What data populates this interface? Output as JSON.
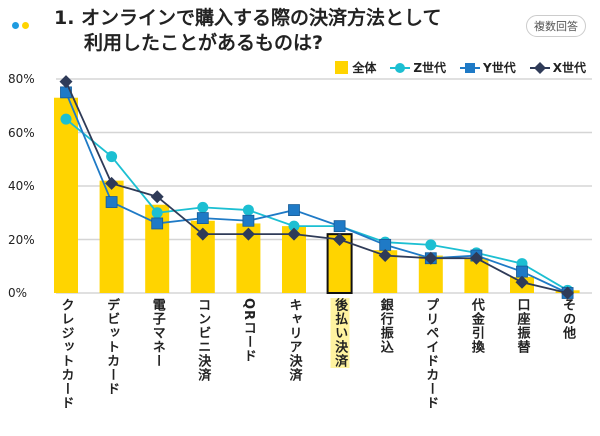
{
  "title": "1. オンラインで購入する際の決済方法として利用したことがあるものは?",
  "title_line1": "1. オンラインで購入する際の決済方法として",
  "title_line2": "利用したことがあるものは?",
  "badge": "複数回答",
  "colors": {
    "bar": "#FFD400",
    "z": "#1CBFD2",
    "y": "#1F7AC6",
    "x": "#2F3B58",
    "dot_blue": "#1F9BE0",
    "dot_yellow": "#FFD400"
  },
  "chart_data": {
    "type": "bar+line",
    "categories": [
      "クレジットカード",
      "デビットカード",
      "電子マネー",
      "コンビニ決済",
      "QRコード",
      "キャリア決済",
      "後払い決済",
      "銀行振込",
      "プリペイドカード",
      "代金引換",
      "口座振替",
      "その他"
    ],
    "highlight": "後払い決済",
    "yticks": [
      "0%",
      "20%",
      "40%",
      "60%",
      "80%"
    ],
    "ylim": [
      0,
      80
    ],
    "grid": true,
    "legend_position": "top-right",
    "series": [
      {
        "name": "全体",
        "type": "bar",
        "values": [
          73,
          42,
          33,
          27,
          26,
          25,
          22,
          16,
          14,
          13,
          6,
          1
        ]
      },
      {
        "name": "Z世代",
        "type": "line",
        "marker": "circle",
        "values": [
          65,
          51,
          30,
          32,
          31,
          25,
          25,
          19,
          18,
          15,
          11,
          1
        ]
      },
      {
        "name": "Y世代",
        "type": "line",
        "marker": "square",
        "values": [
          75,
          34,
          26,
          28,
          27,
          31,
          25,
          18,
          13,
          14,
          8,
          0
        ]
      },
      {
        "name": "X世代",
        "type": "line",
        "marker": "diamond",
        "values": [
          79,
          41,
          36,
          22,
          22,
          22,
          20,
          14,
          13,
          13,
          4,
          0
        ]
      }
    ]
  }
}
